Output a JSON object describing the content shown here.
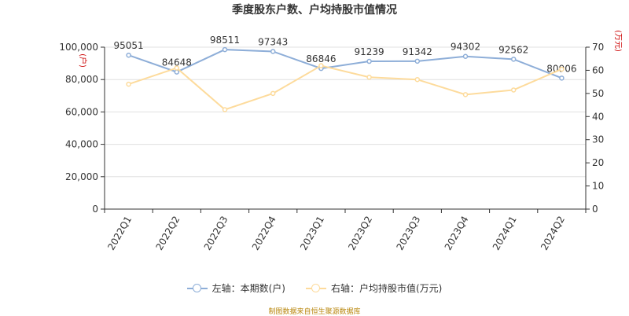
{
  "title": "季度股东户数、户均持股市值情况",
  "source": "制图数据来自恒生聚源数据库",
  "legend": {
    "left_label": "左轴：本期数(户)",
    "right_label": "右轴：户均持股市值(万元)"
  },
  "colors": {
    "left_series": "#8eaed8",
    "right_series": "#fddb9c",
    "axis_label": "#cc0000"
  },
  "chart_data": {
    "type": "line",
    "title": "季度股东户数、户均持股市值情况",
    "categories": [
      "2022Q1",
      "2022Q2",
      "2022Q3",
      "2022Q4",
      "2023Q1",
      "2023Q2",
      "2023Q3",
      "2023Q4",
      "2024Q1",
      "2024Q2"
    ],
    "y_left": {
      "label": "(户)",
      "range": [
        0,
        100000
      ],
      "ticks": [
        0,
        20000,
        40000,
        60000,
        80000,
        100000
      ],
      "tick_labels": [
        "0",
        "20,000",
        "40,000",
        "60,000",
        "80,000",
        "100,000"
      ]
    },
    "y_right": {
      "label": "(万元)",
      "range": [
        0,
        70
      ],
      "ticks": [
        0,
        10,
        20,
        30,
        40,
        50,
        60,
        70
      ],
      "tick_labels": [
        "0",
        "10",
        "20",
        "30",
        "40",
        "50",
        "60",
        "70"
      ]
    },
    "series": [
      {
        "name": "左轴：本期数(户)",
        "axis": "left",
        "values": [
          95051,
          84648,
          98511,
          97343,
          86846,
          91239,
          91342,
          94302,
          92562,
          80906
        ],
        "labels": [
          "95051",
          "84648",
          "98511",
          "97343",
          "86846",
          "91239",
          "91342",
          "94302",
          "92562",
          "80906"
        ]
      },
      {
        "name": "右轴：户均持股市值(万元)",
        "axis": "right",
        "values": [
          54,
          61,
          43,
          50,
          62,
          57,
          56,
          49.5,
          51.5,
          60.5
        ]
      }
    ],
    "grid": true,
    "legend_position": "bottom"
  }
}
